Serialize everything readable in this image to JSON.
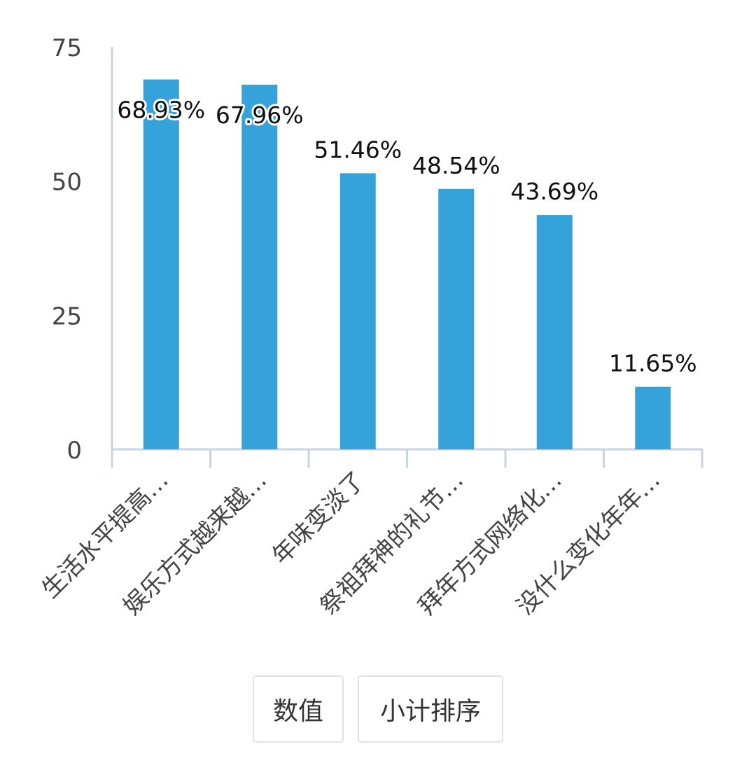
{
  "chart_data": {
    "type": "bar",
    "categories": [
      "生活水平提高…",
      "娱乐方式越来越…",
      "年味变淡了",
      "祭祖拜神的礼节…",
      "拜年方式网络化…",
      "没什么变化年年…"
    ],
    "values": [
      68.93,
      67.96,
      51.46,
      48.54,
      43.69,
      11.65
    ],
    "data_labels": [
      "68.93%",
      "67.96%",
      "51.46%",
      "48.54%",
      "43.69%",
      "11.65%"
    ],
    "y_ticks": [
      0,
      25,
      50,
      75
    ],
    "ylim": [
      0,
      75
    ],
    "grid": false,
    "bar_color": "#36a2da",
    "axis_color": "#c6d4e3"
  },
  "buttons": {
    "values_label": "数值",
    "sort_label": "小计排序"
  }
}
